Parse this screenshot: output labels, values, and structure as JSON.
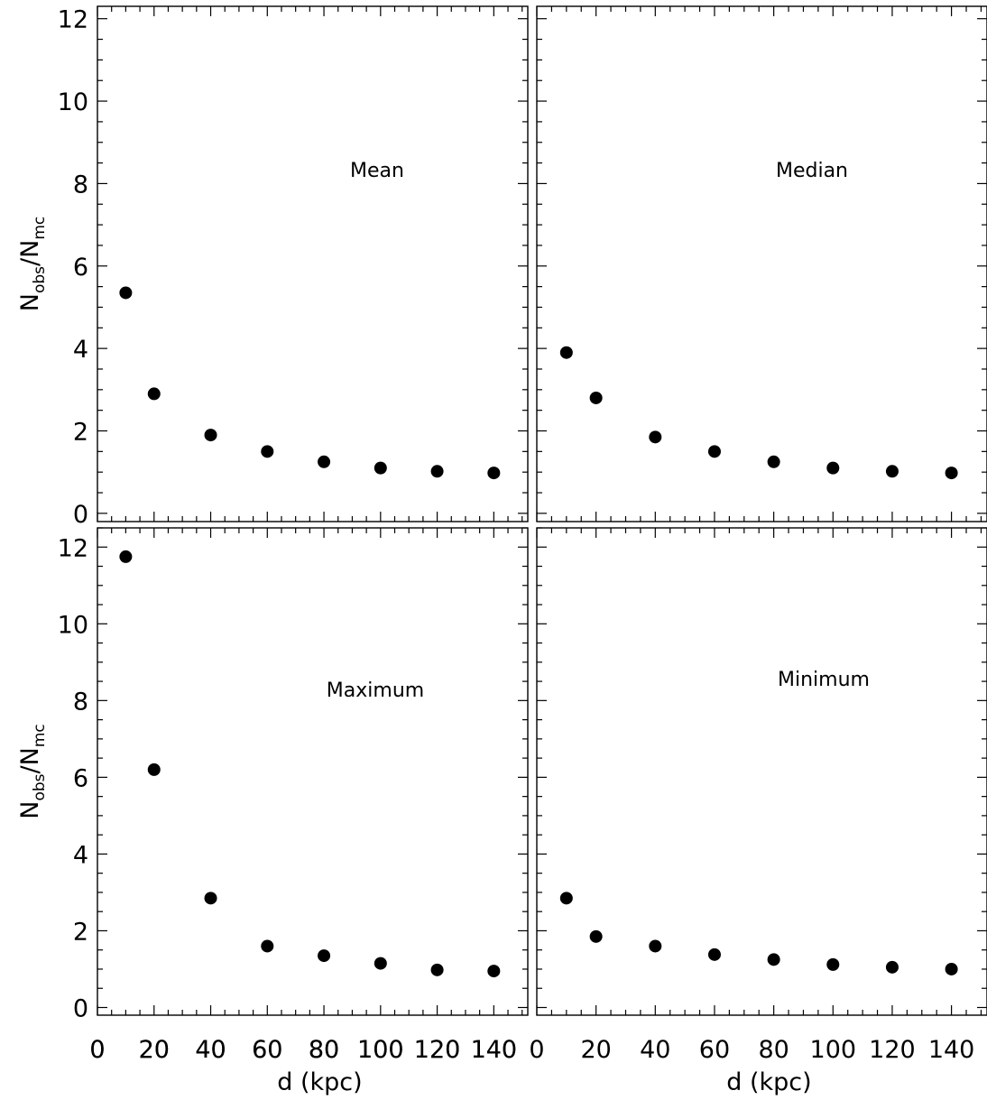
{
  "chart_data": [
    {
      "type": "scatter",
      "panel": "top-left",
      "annotation": "Mean",
      "xlabel": "",
      "ylabel": "N_obs/N_mc",
      "xlim": [
        0,
        152
      ],
      "ylim": [
        -0.2,
        12.3
      ],
      "x_ticks": [
        "0",
        "20",
        "40",
        "60",
        "80",
        "100",
        "120",
        "140"
      ],
      "y_ticks": [
        "0",
        "2",
        "4",
        "6",
        "8",
        "10",
        "12"
      ],
      "x": [
        10,
        20,
        40,
        60,
        80,
        100,
        120,
        140
      ],
      "y": [
        5.35,
        2.9,
        1.9,
        1.5,
        1.25,
        1.1,
        1.02,
        0.98
      ]
    },
    {
      "type": "scatter",
      "panel": "top-right",
      "annotation": "Median",
      "xlabel": "",
      "ylabel": "",
      "xlim": [
        0,
        152
      ],
      "ylim": [
        -0.2,
        12.3
      ],
      "x_ticks": [],
      "y_ticks": [],
      "x": [
        10,
        20,
        40,
        60,
        80,
        100,
        120,
        140
      ],
      "y": [
        3.9,
        2.8,
        1.85,
        1.5,
        1.25,
        1.1,
        1.02,
        0.98
      ]
    },
    {
      "type": "scatter",
      "panel": "bottom-left",
      "annotation": "Maximum",
      "xlabel": "d (kpc)",
      "ylabel": "N_obs/N_mc",
      "xlim": [
        0,
        152
      ],
      "ylim": [
        -0.2,
        12.5
      ],
      "x_ticks": [
        "0",
        "20",
        "40",
        "60",
        "80",
        "100",
        "120",
        "140"
      ],
      "y_ticks": [
        "0",
        "2",
        "4",
        "6",
        "8",
        "10",
        "12"
      ],
      "x": [
        10,
        20,
        40,
        60,
        80,
        100,
        120,
        140
      ],
      "y": [
        11.75,
        6.2,
        2.85,
        1.6,
        1.35,
        1.15,
        0.98,
        0.95
      ]
    },
    {
      "type": "scatter",
      "panel": "bottom-right",
      "annotation": "Minimum",
      "xlabel": "d (kpc)",
      "ylabel": "",
      "xlim": [
        0,
        152
      ],
      "ylim": [
        -0.2,
        12.5
      ],
      "x_ticks": [
        "0",
        "20",
        "40",
        "60",
        "80",
        "100",
        "120",
        "140"
      ],
      "y_ticks": [],
      "x": [
        10,
        20,
        40,
        60,
        80,
        100,
        120,
        140
      ],
      "y": [
        2.85,
        1.85,
        1.6,
        1.38,
        1.25,
        1.12,
        1.05,
        1.0
      ]
    }
  ],
  "ylabel_parts": {
    "n1": "N",
    "sub1": "obs",
    "slash": "/",
    "n2": "N",
    "sub2": "mc"
  }
}
